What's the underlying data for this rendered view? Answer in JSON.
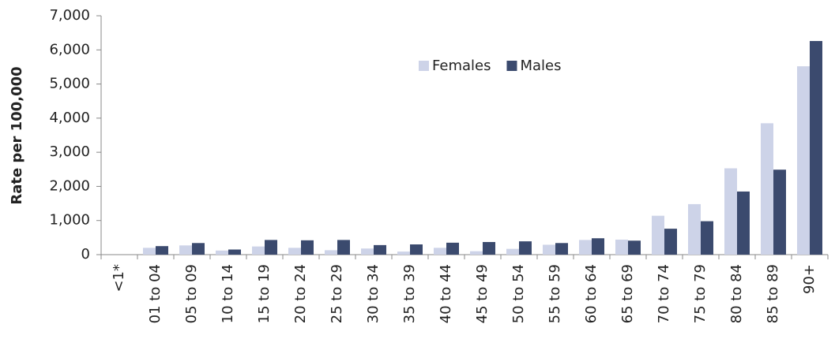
{
  "chart_data": {
    "type": "bar",
    "y_label": "Rate per 100,000",
    "categories": [
      "<1*",
      "01 to 04",
      "05 to 09",
      "10 to 14",
      "15 to 19",
      "20 to 24",
      "25 to 29",
      "30 to 34",
      "35 to 39",
      "40 to 44",
      "45 to 49",
      "50 to 54",
      "55 to 59",
      "60 to 64",
      "65 to 69",
      "70 to 74",
      "75 to 79",
      "80 to 84",
      "85 to 89",
      "90+"
    ],
    "series": [
      {
        "name": "Females",
        "color": "#cdd3e8",
        "values": [
          0,
          200,
          270,
          120,
          240,
          200,
          130,
          180,
          90,
          200,
          100,
          170,
          290,
          430,
          440,
          1140,
          1480,
          2530,
          3850,
          5520
        ]
      },
      {
        "name": "Males",
        "color": "#3b4a6e",
        "values": [
          0,
          250,
          340,
          150,
          430,
          420,
          430,
          280,
          300,
          350,
          370,
          390,
          340,
          480,
          410,
          760,
          980,
          1850,
          2490,
          6260
        ]
      }
    ],
    "ylim": [
      0,
      7000
    ],
    "yticks": [
      0,
      {
        "value": 1000,
        "label": "1,000"
      },
      {
        "value": 2000,
        "label": "2,000"
      },
      {
        "value": 3000,
        "label": "3,000"
      },
      {
        "value": 4000,
        "label": "4,000"
      },
      {
        "value": 5000,
        "label": "5,000"
      },
      {
        "value": 6000,
        "label": "6,000"
      },
      {
        "value": 7000,
        "label": "7,000"
      }
    ],
    "grid": false,
    "legend": "top"
  }
}
